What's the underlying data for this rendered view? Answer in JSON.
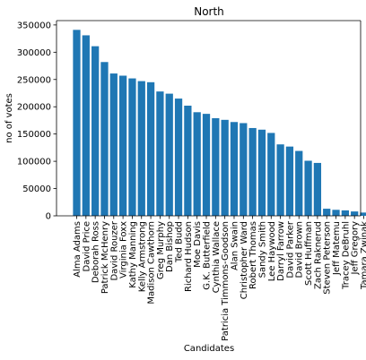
{
  "chart_data": {
    "type": "bar",
    "title": "North",
    "xlabel": "Candidates",
    "ylabel": "no of votes",
    "ylim": [
      0,
      358000
    ],
    "yticks": [
      0,
      50000,
      100000,
      150000,
      200000,
      250000,
      300000,
      350000
    ],
    "categories": [
      "Alma Adams",
      "David Price",
      "Deborah Ross",
      "Patrick McHenry",
      "David Rouzer",
      "Virginia Foxx",
      "Kathy Manning",
      "Kelly Armstrong",
      "Madison Cawthorn",
      "Greg Murphy",
      "Dan Bishop",
      "Ted Budd",
      "Richard Hudson",
      "Moe Davis",
      "G.K. Butterfield",
      "Cynthia Wallace",
      "Patricia Timmons-Goodson",
      "Alan Swain",
      "Christopher Ward",
      "Robert Thomas",
      "Sandy Smith",
      "Lee Haywood",
      "Darryl Farrow",
      "David Parker",
      "David Brown",
      "Scott Huffman",
      "Zach Raknerud",
      "Steven Peterson",
      "Jeff Matemu",
      "Tracey DeBruhl",
      "Jeff Gregory",
      "Tamara Zwinak"
    ],
    "values": [
      341000,
      331000,
      311000,
      282000,
      261000,
      257000,
      252000,
      247000,
      245000,
      228000,
      224000,
      215000,
      202000,
      190000,
      187000,
      179000,
      176000,
      172000,
      170000,
      161000,
      158000,
      152000,
      131000,
      127000,
      119000,
      101000,
      97000,
      13000,
      11000,
      10000,
      8000,
      6000
    ],
    "bar_color": "#1f77b4",
    "grid": false,
    "legend": "none"
  }
}
